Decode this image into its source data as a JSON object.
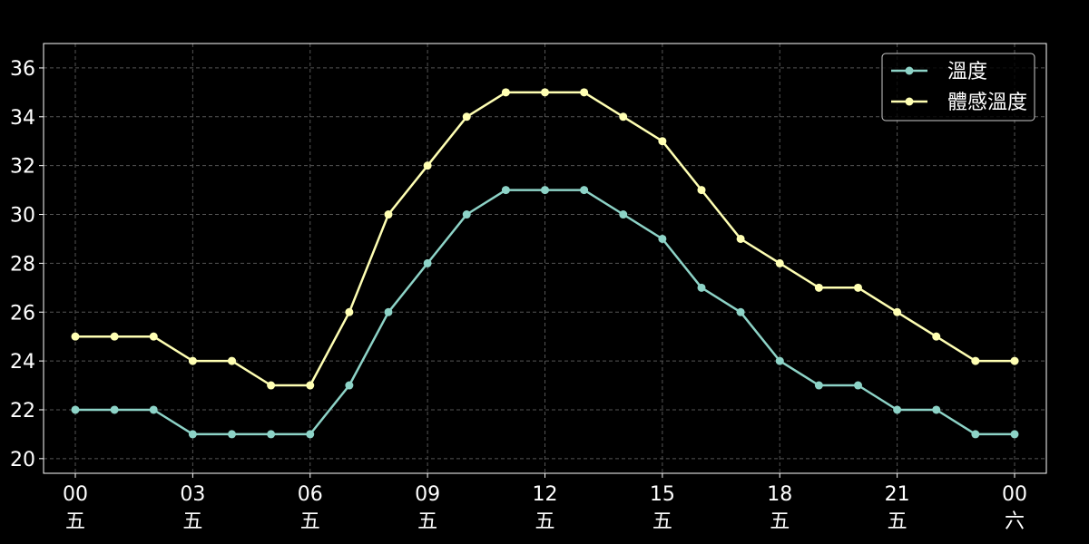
{
  "chart_data": {
    "type": "line",
    "x": [
      "00",
      "01",
      "02",
      "03",
      "04",
      "05",
      "06",
      "07",
      "08",
      "09",
      "10",
      "11",
      "12",
      "13",
      "14",
      "15",
      "16",
      "17",
      "18",
      "19",
      "20",
      "21",
      "22",
      "23",
      "00"
    ],
    "x_tick_labels": [
      {
        "index": 0,
        "hour": "00",
        "day": "五"
      },
      {
        "index": 3,
        "hour": "03",
        "day": "五"
      },
      {
        "index": 6,
        "hour": "06",
        "day": "五"
      },
      {
        "index": 9,
        "hour": "09",
        "day": "五"
      },
      {
        "index": 12,
        "hour": "12",
        "day": "五"
      },
      {
        "index": 15,
        "hour": "15",
        "day": "五"
      },
      {
        "index": 18,
        "hour": "18",
        "day": "五"
      },
      {
        "index": 21,
        "hour": "21",
        "day": "五"
      },
      {
        "index": 24,
        "hour": "00",
        "day": "六"
      }
    ],
    "y_ticks": [
      20,
      22,
      24,
      26,
      28,
      30,
      32,
      34,
      36
    ],
    "ylim": [
      19.4,
      37
    ],
    "grid": true,
    "legend_position": "top-right",
    "series": [
      {
        "name": "溫度",
        "color": "#8dd3c7",
        "values": [
          22,
          22,
          22,
          21,
          21,
          21,
          21,
          23,
          26,
          28,
          30,
          31,
          31,
          31,
          30,
          29,
          27,
          26,
          24,
          23,
          23,
          22,
          22,
          21,
          21
        ]
      },
      {
        "name": "體感溫度",
        "color": "#ffffb3",
        "values": [
          25,
          25,
          25,
          24,
          24,
          23,
          23,
          26,
          30,
          32,
          34,
          35,
          35,
          35,
          34,
          33,
          31,
          29,
          28,
          27,
          27,
          26,
          25,
          24,
          24
        ]
      }
    ]
  }
}
